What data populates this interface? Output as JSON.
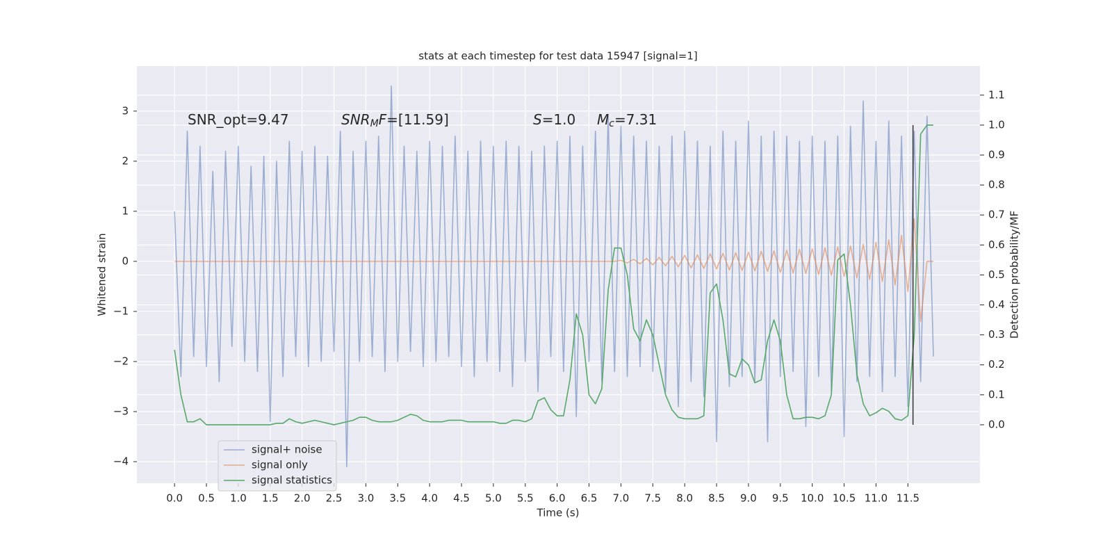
{
  "chart_data": {
    "type": "line",
    "title": "stats at each timestep for test data 15947 [signal=1]",
    "xlabel": "Time (s)",
    "ylabel": "Whitened strain",
    "y2label": "Detection probability/MF",
    "grid": true,
    "legend": "lower left",
    "x": [
      0,
      0.1,
      0.2,
      0.3,
      0.4,
      0.5,
      0.6,
      0.7,
      0.8,
      0.9,
      1,
      1.1,
      1.2,
      1.3,
      1.4,
      1.5,
      1.6,
      1.7,
      1.8,
      1.9,
      2,
      2.1,
      2.2,
      2.3,
      2.4,
      2.5,
      2.6,
      2.7,
      2.8,
      2.9,
      3,
      3.1,
      3.2,
      3.3,
      3.4,
      3.5,
      3.6,
      3.7,
      3.8,
      3.9,
      4,
      4.1,
      4.2,
      4.3,
      4.4,
      4.5,
      4.6,
      4.7,
      4.8,
      4.9,
      5,
      5.1,
      5.2,
      5.3,
      5.4,
      5.5,
      5.6,
      5.7,
      5.8,
      5.9,
      6,
      6.1,
      6.2,
      6.3,
      6.4,
      6.5,
      6.6,
      6.7,
      6.8,
      6.9,
      7,
      7.1,
      7.2,
      7.3,
      7.4,
      7.5,
      7.6,
      7.7,
      7.8,
      7.9,
      8,
      8.1,
      8.2,
      8.3,
      8.4,
      8.5,
      8.6,
      8.7,
      8.8,
      8.9,
      9,
      9.1,
      9.2,
      9.3,
      9.4,
      9.5,
      9.6,
      9.7,
      9.8,
      9.9,
      10,
      10.1,
      10.2,
      10.3,
      10.4,
      10.5,
      10.6,
      10.7,
      10.8,
      10.9,
      11,
      11.1,
      11.2,
      11.3,
      11.4,
      11.5,
      11.6,
      11.7,
      11.8,
      11.9
    ],
    "series": [
      {
        "name": "signal+ noise",
        "color": "#4c72b0",
        "opacity": 0.5,
        "values": [
          1.0,
          -2.3,
          2.6,
          -1.9,
          2.3,
          -2.1,
          1.8,
          -2.4,
          2.2,
          -1.7,
          2.3,
          -2.0,
          1.9,
          -2.2,
          2.1,
          -3.2,
          2.0,
          -2.3,
          2.4,
          -1.9,
          2.2,
          -2.1,
          2.3,
          -2.0,
          2.1,
          -1.8,
          2.6,
          -4.1,
          2.2,
          -2.0,
          2.4,
          -1.9,
          2.5,
          -2.2,
          3.5,
          -2.0,
          2.3,
          -1.8,
          2.2,
          -2.1,
          2.4,
          -2.0,
          2.3,
          -1.9,
          2.5,
          -2.1,
          2.2,
          -2.3,
          2.4,
          -2.0,
          2.3,
          -2.2,
          2.4,
          -2.5,
          2.3,
          -2.0,
          2.2,
          -2.6,
          2.3,
          -1.9,
          2.4,
          -2.2,
          2.5,
          -3.1,
          2.3,
          -2.0,
          2.6,
          -2.4,
          2.9,
          -2.2,
          2.7,
          -2.3,
          2.5,
          -2.1,
          2.4,
          -2.2,
          2.3,
          -2.6,
          2.5,
          -2.9,
          2.6,
          -2.4,
          2.4,
          -2.7,
          2.3,
          -3.6,
          2.6,
          -2.5,
          2.4,
          -2.3,
          2.8,
          -2.4,
          2.5,
          -3.6,
          2.6,
          -2.3,
          2.5,
          -2.2,
          2.4,
          -3.3,
          2.5,
          -2.3,
          2.4,
          -2.6,
          2.5,
          -3.5,
          2.7,
          -2.4,
          3.2,
          -2.3,
          2.4,
          -2.6,
          2.8,
          -2.3,
          2.5,
          -2.9,
          2.6,
          -2.4,
          2.9,
          -1.9
        ]
      },
      {
        "name": "signal only",
        "color": "#dd8452",
        "opacity": 0.6,
        "values": [
          0,
          0,
          0,
          0,
          0,
          0,
          0,
          0,
          0,
          0,
          0,
          0,
          0,
          0,
          0,
          0,
          0,
          0,
          0,
          0,
          0,
          0,
          0,
          0,
          0,
          0,
          0,
          0,
          0,
          0,
          0,
          0,
          0,
          0,
          0,
          0,
          0,
          0,
          0,
          0,
          0,
          0,
          0,
          0,
          0,
          0,
          0,
          0,
          0,
          0,
          0,
          0,
          0,
          0,
          0,
          0,
          0,
          0,
          0,
          0,
          0,
          0,
          0,
          0,
          0,
          0,
          0,
          0,
          0,
          0,
          0.02,
          -0.03,
          0.04,
          -0.05,
          0.06,
          -0.07,
          0.08,
          -0.09,
          0.1,
          -0.11,
          0.12,
          -0.13,
          0.13,
          -0.14,
          0.15,
          -0.15,
          0.16,
          -0.17,
          0.17,
          -0.18,
          0.18,
          -0.19,
          0.2,
          -0.2,
          0.21,
          -0.22,
          0.22,
          -0.23,
          0.24,
          -0.24,
          0.25,
          -0.26,
          0.27,
          -0.28,
          0.29,
          -0.3,
          0.31,
          -0.33,
          0.34,
          -0.36,
          0.38,
          -0.4,
          0.43,
          -0.47,
          0.52,
          -0.6,
          0.85,
          -1.2,
          0,
          0
        ]
      },
      {
        "name": "signal statistics",
        "color": "#55a868",
        "opacity": 1,
        "axis": "y2",
        "values": [
          0.25,
          0.1,
          0.01,
          0.01,
          0.02,
          0.0,
          0.0,
          0.0,
          0.0,
          0.0,
          0.0,
          0.0,
          0.0,
          0.0,
          0.0,
          0.0,
          0.005,
          0.005,
          0.02,
          0.01,
          0.005,
          0.01,
          0.015,
          0.01,
          0.005,
          0.0,
          0.005,
          0.01,
          0.015,
          0.025,
          0.025,
          0.015,
          0.01,
          0.01,
          0.01,
          0.015,
          0.025,
          0.035,
          0.03,
          0.015,
          0.01,
          0.01,
          0.01,
          0.015,
          0.015,
          0.015,
          0.01,
          0.01,
          0.01,
          0.01,
          0.01,
          0.005,
          0.005,
          0.015,
          0.015,
          0.01,
          0.02,
          0.08,
          0.09,
          0.05,
          0.03,
          0.03,
          0.15,
          0.37,
          0.3,
          0.1,
          0.07,
          0.12,
          0.45,
          0.59,
          0.59,
          0.5,
          0.32,
          0.28,
          0.35,
          0.3,
          0.2,
          0.1,
          0.05,
          0.025,
          0.02,
          0.02,
          0.02,
          0.03,
          0.44,
          0.47,
          0.35,
          0.17,
          0.16,
          0.22,
          0.2,
          0.14,
          0.15,
          0.28,
          0.35,
          0.28,
          0.1,
          0.02,
          0.02,
          0.025,
          0.025,
          0.02,
          0.03,
          0.1,
          0.55,
          0.57,
          0.4,
          0.17,
          0.07,
          0.03,
          0.04,
          0.055,
          0.045,
          0.02,
          0.015,
          0.03,
          0.3,
          0.97,
          1.0,
          1.0
        ]
      }
    ],
    "vline": {
      "x": 11.58,
      "y2": [
        0,
        1
      ],
      "color": "#333333"
    },
    "xlim": [
      -0.59,
      12.63
    ],
    "ylim": [
      -4.43,
      3.9
    ],
    "y2lim": [
      -0.195,
      1.197
    ],
    "xticks": [
      {
        "value": 0,
        "label": "0.0"
      },
      0.5,
      {
        "value": 1,
        "label": "1.0"
      },
      1.5,
      {
        "value": 2,
        "label": "2.0"
      },
      2.5,
      {
        "value": 3,
        "label": "3.0"
      },
      3.5,
      {
        "value": 4,
        "label": "4.0"
      },
      4.5,
      {
        "value": 5,
        "label": "5.0"
      },
      5.5,
      {
        "value": 6,
        "label": "6.0"
      },
      6.5,
      {
        "value": 7,
        "label": "7.0"
      },
      7.5,
      {
        "value": 8,
        "label": "8.0"
      },
      8.5,
      {
        "value": 9,
        "label": "9.0"
      },
      9.5,
      {
        "value": 10,
        "label": "10.0"
      },
      10.5,
      {
        "value": 11,
        "label": "11.0"
      },
      11.5
    ],
    "yticks": [
      {
        "value": -4,
        "label": "−4"
      },
      {
        "value": -3,
        "label": "−3"
      },
      {
        "value": -2,
        "label": "−2"
      },
      {
        "value": -1,
        "label": "−1"
      },
      0,
      1,
      2,
      3
    ],
    "y2ticks": [
      {
        "value": 0,
        "label": "0.0"
      },
      0.1,
      0.2,
      0.3,
      0.4,
      0.5,
      0.6,
      0.7,
      0.8,
      0.9,
      {
        "value": 1,
        "label": "1.0"
      },
      1.1
    ],
    "annotations": [
      {
        "parts": [
          {
            "text": "SNR_opt=9.47"
          }
        ]
      },
      {
        "parts": [
          {
            "text": "SNR",
            "italic": true
          },
          {
            "text": "M",
            "italic": true,
            "sub": true
          },
          {
            "text": "F",
            "italic": true
          },
          {
            "text": "=[11.59]"
          }
        ]
      },
      {
        "parts": [
          {
            "text": "S",
            "italic": true
          },
          {
            "text": "=1.0"
          }
        ]
      },
      {
        "parts": [
          {
            "text": "M",
            "italic": true
          },
          {
            "text": "c",
            "italic": true,
            "sub": true
          },
          {
            "text": "=7.31"
          }
        ]
      }
    ]
  }
}
